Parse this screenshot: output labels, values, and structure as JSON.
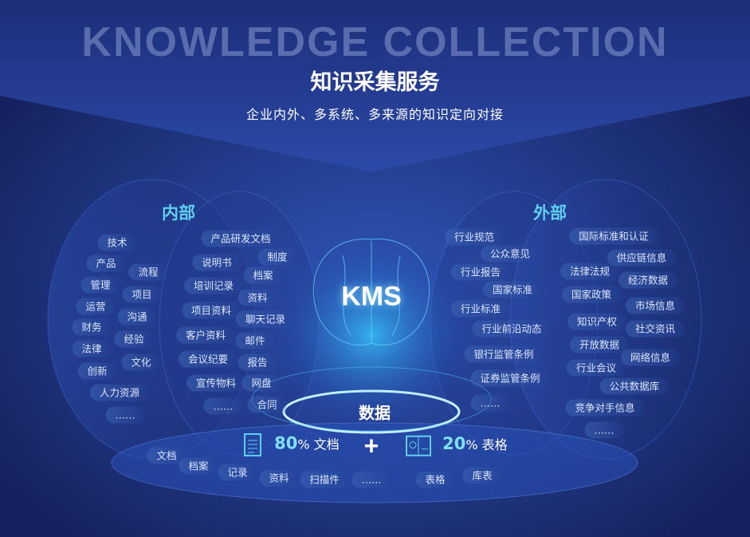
{
  "header": {
    "watermark": "KNOWLEDGE COLLECTION",
    "title": "知识采集服务",
    "subtitle": "企业内外、多系统、多来源的知识定向对接"
  },
  "sections": {
    "internal": "内部",
    "external": "外部"
  },
  "center": {
    "core": "KMS",
    "data_label": "数据"
  },
  "stats": [
    {
      "value": "80",
      "unit": "%",
      "label": "文档",
      "icon": "document-icon"
    },
    {
      "value": "20",
      "unit": "%",
      "label": "表格",
      "icon": "spreadsheet-chart-icon"
    }
  ],
  "plus": "+",
  "internal_outer": [
    "技术",
    "产品",
    "流程",
    "管理",
    "项目",
    "运营",
    "沟通",
    "财务",
    "经验",
    "法律",
    "文化",
    "创新",
    "人力资源",
    "……"
  ],
  "internal_inner": [
    "产品研发文档",
    "说明书",
    "制度",
    "档案",
    "培训记录",
    "资料",
    "项目资料",
    "聊天记录",
    "客户资料",
    "邮件",
    "会议纪要",
    "报告",
    "宣传物料",
    "网盘",
    "……",
    "合同"
  ],
  "external_inner": [
    "行业规范",
    "公众意见",
    "行业报告",
    "国家标准",
    "行业标准",
    "行业前沿动态",
    "银行监管条例",
    "证券监管条例",
    "……"
  ],
  "external_outer": [
    "国际标准和认证",
    "供应链信息",
    "法律法规",
    "经济数据",
    "国家政策",
    "市场信息",
    "知识产权",
    "社交资讯",
    "开放数据",
    "网络信息",
    "行业会议",
    "公共数据库",
    "竞争对手信息",
    "……"
  ],
  "data_types": [
    "文档",
    "档案",
    "记录",
    "资料",
    "扫描件",
    "……",
    "表格",
    "库表"
  ],
  "colors": {
    "background": "#141f5c",
    "accent": "#5fd0f0",
    "glow": "#7fd8ff"
  }
}
